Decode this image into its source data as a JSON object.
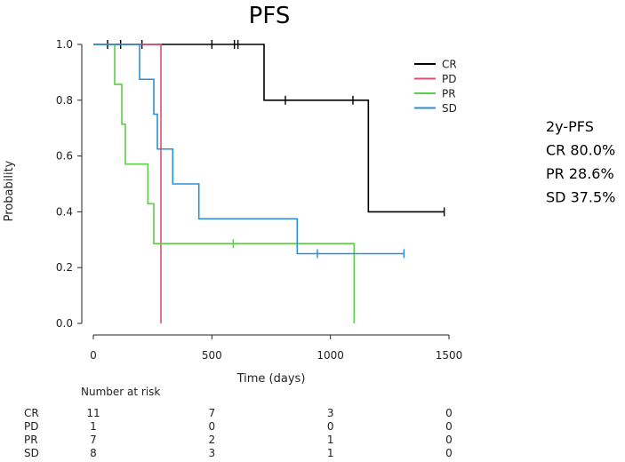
{
  "chart_data": {
    "type": "line",
    "subtype": "kaplan-meier",
    "title": "PFS",
    "xlabel": "Time (days)",
    "ylabel": "Probability",
    "xlim": [
      0,
      1500
    ],
    "ylim": [
      0,
      1
    ],
    "xticks": [
      0,
      500,
      1000,
      1500
    ],
    "yticks": [
      0.0,
      0.2,
      0.4,
      0.6,
      0.8,
      1.0
    ],
    "xtick_labels": [
      "0",
      "500",
      "1000",
      "1500"
    ],
    "ytick_labels": [
      "0.0",
      "0.2",
      "0.4",
      "0.6",
      "0.8",
      "1.0"
    ],
    "legend_position": "top-right",
    "series": [
      {
        "name": "CR",
        "color": "#000000",
        "steps": [
          [
            0,
            1.0
          ],
          [
            720,
            0.8
          ],
          [
            1160,
            0.4
          ],
          [
            1480,
            0.4
          ]
        ],
        "censors": [
          [
            60,
            1.0
          ],
          [
            115,
            1.0
          ],
          [
            205,
            1.0
          ],
          [
            500,
            1.0
          ],
          [
            595,
            1.0
          ],
          [
            610,
            1.0
          ],
          [
            810,
            0.8
          ],
          [
            1095,
            0.8
          ],
          [
            1480,
            0.4
          ]
        ]
      },
      {
        "name": "PD",
        "color": "#e0506e",
        "steps": [
          [
            0,
            1.0
          ],
          [
            285,
            0.0
          ]
        ],
        "censors": []
      },
      {
        "name": "PR",
        "color": "#5fcc4a",
        "steps": [
          [
            0,
            1.0
          ],
          [
            90,
            0.857
          ],
          [
            120,
            0.714
          ],
          [
            135,
            0.571
          ],
          [
            230,
            0.429
          ],
          [
            255,
            0.286
          ],
          [
            1100,
            0.0
          ]
        ],
        "censors": [
          [
            590,
            0.286
          ]
        ]
      },
      {
        "name": "SD",
        "color": "#2b8fd6",
        "steps": [
          [
            0,
            1.0
          ],
          [
            195,
            0.875
          ],
          [
            255,
            0.75
          ],
          [
            270,
            0.625
          ],
          [
            335,
            0.5
          ],
          [
            445,
            0.375
          ],
          [
            860,
            0.25
          ],
          [
            1310,
            0.25
          ]
        ],
        "censors": [
          [
            945,
            0.25
          ],
          [
            1310,
            0.25
          ]
        ]
      }
    ],
    "risk_table": {
      "title": "Number at risk",
      "times": [
        0,
        500,
        1000,
        1500
      ],
      "rows": [
        {
          "name": "CR",
          "counts": [
            11,
            7,
            3,
            0
          ]
        },
        {
          "name": "PD",
          "counts": [
            1,
            0,
            0,
            0
          ]
        },
        {
          "name": "PR",
          "counts": [
            7,
            2,
            1,
            0
          ]
        },
        {
          "name": "SD",
          "counts": [
            8,
            3,
            1,
            0
          ]
        }
      ]
    },
    "annotation": {
      "lines": [
        "2y-PFS",
        "CR 80.0%",
        "PR 28.6%",
        "SD 37.5%"
      ]
    }
  }
}
